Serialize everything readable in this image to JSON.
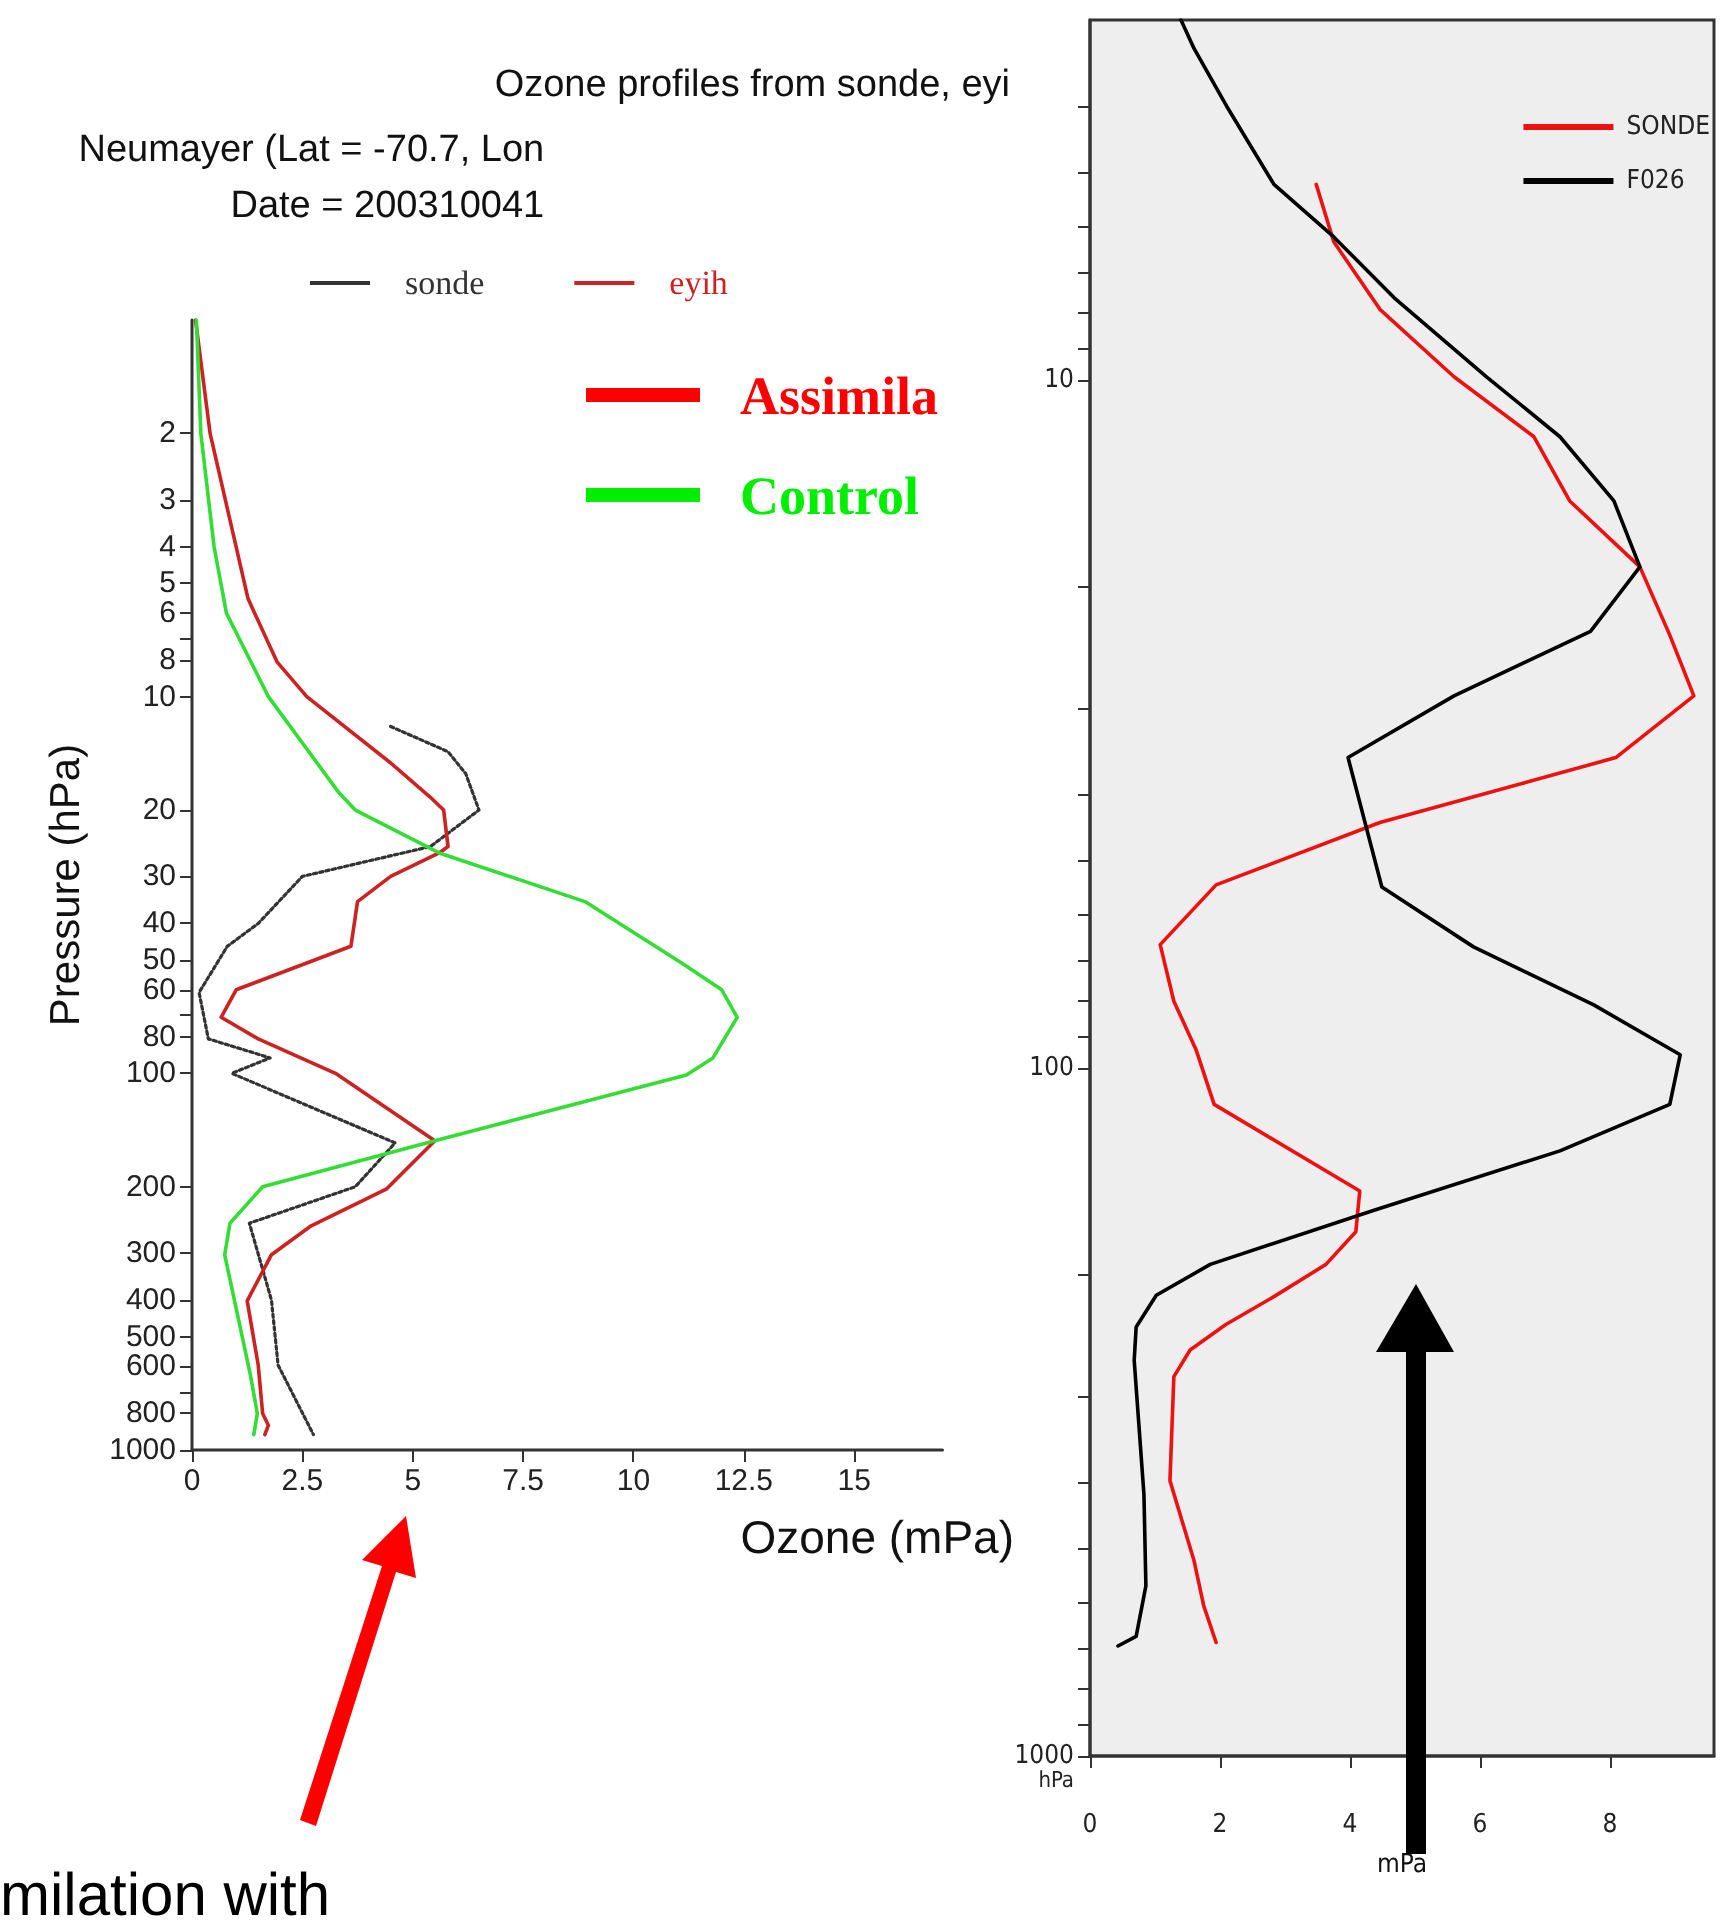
{
  "chart_data": [
    {
      "type": "line",
      "title": "Ozone profiles from sonde, eyi",
      "subtitle": "Neumayer (Lat = -70.7, Lon\nDate = 200310041",
      "xlabel": "Ozone (mPa)",
      "ylabel": "Pressure (hPa)",
      "xlim": [
        0,
        17
      ],
      "xticks": [
        0,
        2.5,
        5,
        7.5,
        10,
        12.5,
        15
      ],
      "ylim": [
        1000,
        1
      ],
      "yticks": [
        2,
        3,
        4,
        5,
        6,
        {
          "value": 7,
          "label": null
        },
        8,
        10,
        20,
        30,
        40,
        50,
        60,
        {
          "value": 70,
          "label": null
        },
        80,
        100,
        200,
        300,
        400,
        500,
        600,
        {
          "value": 700,
          "label": null
        },
        800,
        1000
      ],
      "log": "y",
      "grid": false,
      "legend": "top",
      "marker": "none",
      "annotations": [
        "Assimila",
        "Control",
        "milation with"
      ],
      "series": [
        {
          "name": "sonde",
          "color": "#333333",
          "line_style": "dotted",
          "x": [
            4.5,
            5.8,
            6.2,
            6.5,
            5.4,
            2.5,
            1.5,
            0.8,
            0.16,
            0.37,
            1.77,
            0.9,
            4.6,
            3.7,
            1.3,
            1.8,
            1.95,
            2.75
          ],
          "values": [
            12,
            14,
            16,
            20,
            25,
            30,
            40,
            46,
            61,
            81,
            91,
            100,
            153,
            200,
            250,
            400,
            595,
            910
          ]
        },
        {
          "name": "eyih",
          "color": "#cc2222",
          "line_style": "solid",
          "x": [
            0.08,
            0.41,
            1.27,
            1.93,
            2.6,
            4.5,
            5.4,
            5.7,
            5.8,
            5.6,
            4.5,
            3.75,
            3.6,
            1.0,
            0.66,
            1.5,
            3.25,
            5.5,
            4.4,
            2.7,
            1.8,
            1.25,
            1.5,
            1.6,
            1.73,
            1.65
          ],
          "values": [
            1,
            2,
            5.5,
            8.1,
            10,
            15,
            18.5,
            20,
            25,
            26,
            30,
            35,
            46,
            60,
            71,
            81,
            100,
            151,
            203,
            254,
            303,
            402,
            595,
            800,
            860,
            910
          ]
        },
        {
          "color": "#33dd33",
          "line_style": "solid",
          "x": [
            0.1,
            0.2,
            0.5,
            0.78,
            1.73,
            3.33,
            3.7,
            5.6,
            8.9,
            11.1,
            12.0,
            12.35,
            11.8,
            11.2,
            5.5,
            1.6,
            0.86,
            0.74,
            1.32,
            1.48,
            1.4
          ],
          "values": [
            1,
            2,
            4,
            6,
            10,
            18,
            20,
            26,
            35,
            51,
            60,
            71,
            91,
            101,
            151,
            200,
            250,
            303,
            630,
            800,
            910
          ]
        }
      ]
    },
    {
      "type": "line",
      "xlabel": "mPa",
      "ylabel": "hPa",
      "xlim": [
        0,
        9.6
      ],
      "xticks": [
        0,
        2,
        4,
        6,
        8
      ],
      "ylim": [
        1000,
        3
      ],
      "yticks": [
        {
          "value": 4,
          "label": null
        },
        {
          "value": 5,
          "label": null
        },
        {
          "value": 6,
          "label": null
        },
        {
          "value": 7,
          "label": null
        },
        {
          "value": 8,
          "label": null
        },
        {
          "value": 9,
          "label": null
        },
        10,
        {
          "value": 20,
          "label": null
        },
        {
          "value": 30,
          "label": null
        },
        {
          "value": 40,
          "label": null
        },
        {
          "value": 50,
          "label": null
        },
        {
          "value": 60,
          "label": null
        },
        {
          "value": 70,
          "label": null
        },
        {
          "value": 80,
          "label": null
        },
        {
          "value": 90,
          "label": null
        },
        100,
        {
          "value": 200,
          "label": null
        },
        {
          "value": 300,
          "label": null
        },
        {
          "value": 400,
          "label": null
        },
        {
          "value": 500,
          "label": null
        },
        {
          "value": 600,
          "label": null
        },
        {
          "value": 700,
          "label": null
        },
        {
          "value": 800,
          "label": null
        },
        {
          "value": 900,
          "label": null
        },
        1000
      ],
      "log": "y",
      "grid": false,
      "legend": "top right",
      "marker": "none",
      "series": [
        {
          "name": "SONDE",
          "color": "#ee1111",
          "line_style": "solid",
          "x": [
            3.48,
            3.75,
            4.46,
            5.6,
            6.83,
            7.38,
            8.46,
            8.92,
            9.29,
            8.09,
            4.46,
            1.94,
            1.08,
            1.29,
            1.63,
            1.91,
            4.15,
            4.09,
            3.63,
            2.83,
            2.09,
            1.54,
            1.29,
            1.23,
            1.6,
            1.75,
            1.94
          ],
          "values": [
            5.2,
            6.3,
            7.9,
            9.9,
            12.1,
            15,
            18.7,
            23.5,
            28.8,
            35.4,
            44,
            54.2,
            66.2,
            80,
            94,
            113,
            151,
            173,
            193,
            215,
            236,
            257,
            281,
            398,
            520,
            605,
            684
          ]
        },
        {
          "name": "F026",
          "color": "#000000",
          "line_style": "solid",
          "x": [
            1.4,
            1.6,
            2.1,
            2.83,
            3.75,
            4.68,
            6.1,
            7.23,
            8.06,
            8.46,
            7.7,
            5.6,
            3.97,
            4.49,
            5.9,
            7.75,
            9.08,
            8.92,
            7.23,
            4.37,
            1.85,
            1.02,
            0.71,
            0.68,
            0.83,
            0.86,
            0.71,
            0.43
          ],
          "values": [
            3,
            3.3,
            4,
            5.2,
            6.2,
            7.6,
            9.9,
            12.1,
            15,
            18.7,
            23.2,
            28.8,
            35.4,
            54.6,
            66.7,
            81,
            95.7,
            113,
            132,
            161,
            193,
            214,
            238,
            266,
            417,
            566,
            670,
            692
          ]
        }
      ]
    }
  ]
}
